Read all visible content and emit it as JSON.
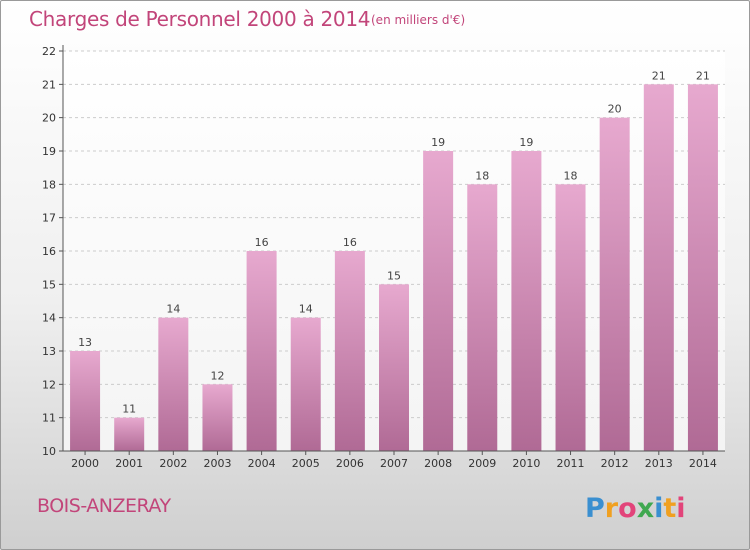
{
  "title": "Charges de Personnel 2000 à 2014",
  "unit_note": "(en milliers d'€)",
  "commune": "BOIS-ANZERAY",
  "logo_text": "Proxiti",
  "colors": {
    "title": "#c2457a",
    "bar_top": "#e7a9cf",
    "bar_bottom": "#b06a95",
    "grid": "#cccccc",
    "axis": "#555555"
  },
  "chart_data": {
    "type": "bar",
    "categories": [
      "2000",
      "2001",
      "2002",
      "2003",
      "2004",
      "2005",
      "2006",
      "2007",
      "2008",
      "2009",
      "2010",
      "2011",
      "2012",
      "2013",
      "2014"
    ],
    "values": [
      13,
      11,
      14,
      12,
      16,
      14,
      16,
      15,
      19,
      18,
      19,
      18,
      20,
      21,
      21
    ],
    "ylim": [
      10,
      22
    ],
    "yticks": [
      10,
      11,
      12,
      13,
      14,
      15,
      16,
      17,
      18,
      19,
      20,
      21,
      22
    ],
    "grid": true,
    "grid_style": "dashed-horizontal",
    "xlabel": "",
    "ylabel": ""
  }
}
